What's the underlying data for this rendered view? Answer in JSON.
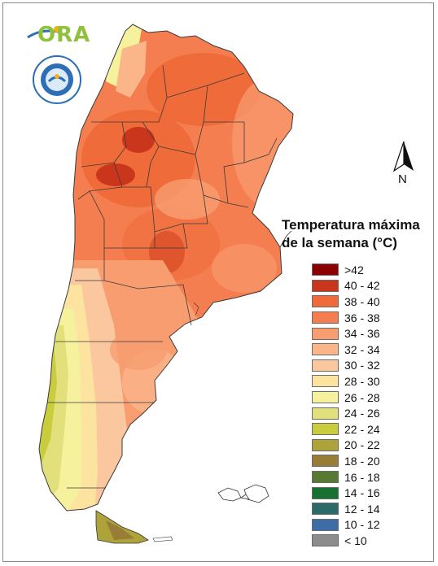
{
  "legend": {
    "title_line1": "Temperatura máxima",
    "title_line2": "de la semana (°C)",
    "items": [
      {
        "label": ">42",
        "color": "#8b0000"
      },
      {
        "label": "40 - 42",
        "color": "#c9361b"
      },
      {
        "label": "38 - 40",
        "color": "#ef6b3a"
      },
      {
        "label": "36 - 38",
        "color": "#f47e50"
      },
      {
        "label": "34 - 36",
        "color": "#f89d70"
      },
      {
        "label": "32 - 34",
        "color": "#fab589"
      },
      {
        "label": "30 - 32",
        "color": "#fbc79e"
      },
      {
        "label": "28 - 30",
        "color": "#fde3a0"
      },
      {
        "label": "26 - 28",
        "color": "#f6f19c"
      },
      {
        "label": "24 - 26",
        "color": "#e1e07a"
      },
      {
        "label": "22 - 24",
        "color": "#c9cc3c"
      },
      {
        "label": "20 - 22",
        "color": "#aea23a"
      },
      {
        "label": "18 - 20",
        "color": "#977d36"
      },
      {
        "label": "16 - 18",
        "color": "#567a32"
      },
      {
        "label": "14 - 16",
        "color": "#177032"
      },
      {
        "label": "12 - 14",
        "color": "#2c6a6a"
      },
      {
        "label": "10 - 12",
        "color": "#3d6ca6"
      },
      {
        "label": "< 10",
        "color": "#8c8c8c"
      }
    ]
  },
  "compass": {
    "label": "N"
  },
  "logo": {
    "text": "ORA"
  }
}
